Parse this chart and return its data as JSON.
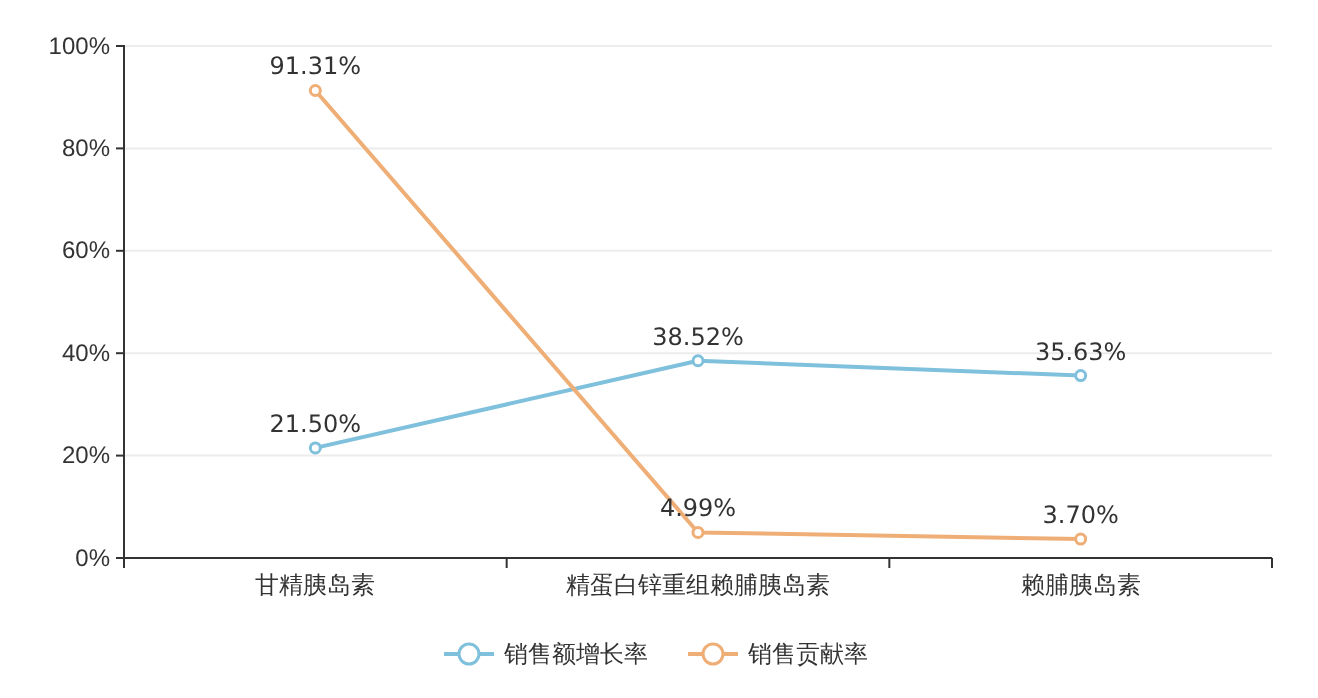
{
  "chart_data": {
    "type": "line",
    "categories": [
      "甘精胰岛素",
      "精蛋白锌重组赖脯胰岛素",
      "赖脯胰岛素"
    ],
    "series": [
      {
        "name": "销售额增长率",
        "color": "#7fc0dc",
        "values": [
          21.5,
          38.52,
          35.63
        ],
        "value_labels": [
          "21.50%",
          "38.52%",
          "35.63%"
        ]
      },
      {
        "name": "销售贡献率",
        "color": "#efae76",
        "values": [
          91.31,
          4.99,
          3.7
        ],
        "value_labels": [
          "91.31%",
          "4.99%",
          "3.70%"
        ]
      }
    ],
    "ylim": [
      0,
      100
    ],
    "yticks": [
      {
        "value": 0,
        "label": "0%"
      },
      {
        "value": 20,
        "label": "20%"
      },
      {
        "value": 40,
        "label": "40%"
      },
      {
        "value": 60,
        "label": "60%"
      },
      {
        "value": 80,
        "label": "80%"
      },
      {
        "value": 100,
        "label": "100%"
      }
    ],
    "grid": "y",
    "legend": "bottom",
    "marker": "circle",
    "line_style": "solid"
  }
}
